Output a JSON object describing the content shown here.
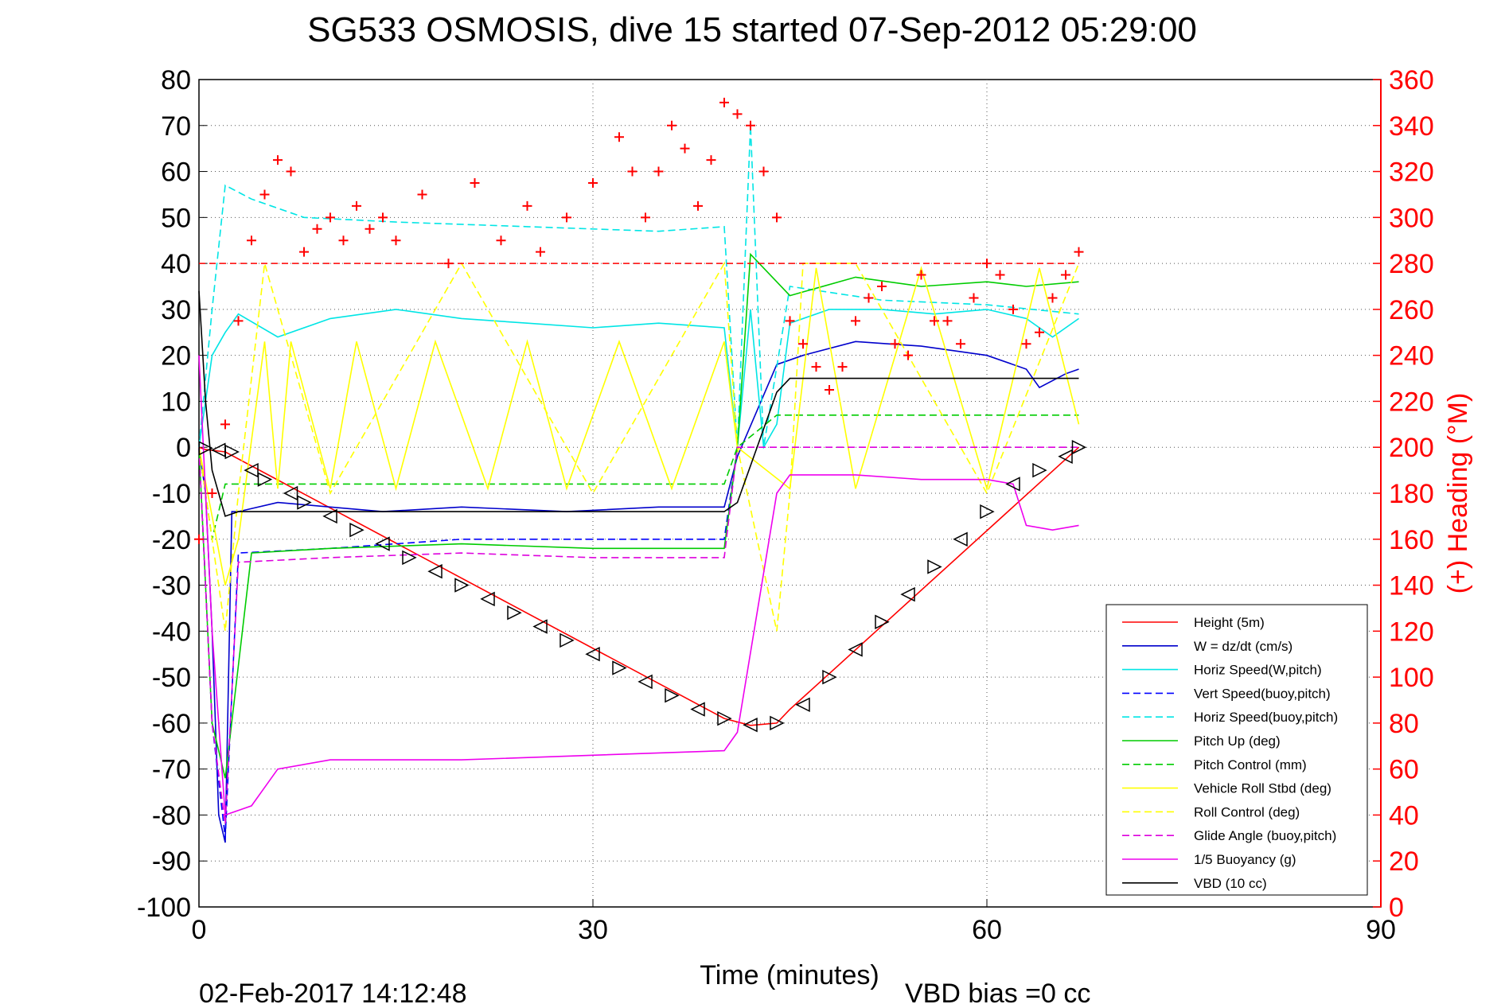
{
  "chart_data": {
    "type": "line",
    "title": "SG533 OSMOSIS, dive 15 started 07-Sep-2012 05:29:00",
    "xlabel": "Time (minutes)",
    "ylabel_right": "(+) Heading (°M)",
    "footer_date": "02-Feb-2017 14:12:48",
    "footer_vbd": "VBD bias =0 cc",
    "xlim": [
      0,
      90
    ],
    "ylim": [
      -100,
      80
    ],
    "y2lim": [
      0,
      360
    ],
    "x_ticks": [
      "0",
      "30",
      "60",
      "90"
    ],
    "y_ticks": [
      "80",
      "70",
      "60",
      "50",
      "40",
      "30",
      "20",
      "10",
      "0",
      "-10",
      "-20",
      "-30",
      "-40",
      "-50",
      "-60",
      "-70",
      "-80",
      "-90",
      "-100"
    ],
    "y2_ticks": [
      "360",
      "340",
      "320",
      "300",
      "280",
      "260",
      "240",
      "220",
      "200",
      "180",
      "160",
      "140",
      "120",
      "100",
      "80",
      "60",
      "40",
      "20",
      "0"
    ],
    "grid": true,
    "legend_position": "bottom-right",
    "colors": {
      "axis_right": "#ff0000",
      "height": "#ff0000",
      "w": "#0000cc",
      "horiz_w": "#00e5e5",
      "vert_buoy": "#0000ff",
      "horiz_buoy": "#00e5e5",
      "pitch": "#00cc00",
      "pitch_ctl": "#00cc00",
      "roll": "#ffff00",
      "roll_ctl": "#ffff00",
      "glide": "#dd00dd",
      "buoyancy": "#ee00ee",
      "vbd": "#000000",
      "heading": "#ff0000"
    },
    "legend": [
      {
        "label": "Height (5m)",
        "color": "#ff0000",
        "dash": false
      },
      {
        "label": "W = dz/dt (cm/s)",
        "color": "#0000cc",
        "dash": false
      },
      {
        "label": "Horiz Speed(W,pitch)",
        "color": "#00e5e5",
        "dash": false
      },
      {
        "label": "Vert Speed(buoy,pitch)",
        "color": "#0000ff",
        "dash": true
      },
      {
        "label": "Horiz Speed(buoy,pitch)",
        "color": "#00e5e5",
        "dash": true
      },
      {
        "label": "Pitch Up (deg)",
        "color": "#00cc00",
        "dash": false
      },
      {
        "label": "Pitch Control (mm)",
        "color": "#00cc00",
        "dash": true
      },
      {
        "label": "Vehicle Roll Stbd (deg)",
        "color": "#ffff00",
        "dash": false
      },
      {
        "label": "Roll Control (deg)",
        "color": "#ffff00",
        "dash": true
      },
      {
        "label": "Glide Angle (buoy,pitch)",
        "color": "#dd00dd",
        "dash": true
      },
      {
        "label": "1/5 Buoyancy (g)",
        "color": "#ee00ee",
        "dash": false
      },
      {
        "label": "VBD (10 cc)",
        "color": "#000000",
        "dash": false
      }
    ],
    "series": [
      {
        "name": "Height (5m)",
        "x": [
          0,
          0.5,
          2,
          40,
          42,
          44,
          45,
          67
        ],
        "y": [
          0,
          -0.5,
          -1,
          -59,
          -60.5,
          -60,
          -57,
          0
        ]
      },
      {
        "name": "W = dz/dt (cm/s)",
        "x": [
          0,
          0.5,
          1,
          1.5,
          2,
          2.5,
          3,
          6,
          10,
          14,
          20,
          28,
          35,
          40,
          41,
          44,
          46,
          50,
          55,
          60,
          63,
          64,
          66,
          67
        ],
        "y": [
          0,
          -10,
          -40,
          -80,
          -86,
          -14,
          -14,
          -12,
          -13,
          -14,
          -13,
          -14,
          -13,
          -13,
          -2,
          18,
          20,
          23,
          22,
          20,
          17,
          13,
          16,
          17
        ]
      },
      {
        "name": "Horiz Speed(W,pitch)",
        "x": [
          0,
          1,
          2,
          3,
          6,
          10,
          15,
          20,
          25,
          30,
          35,
          40,
          41,
          42,
          43,
          44,
          45,
          48,
          52,
          56,
          60,
          63,
          65,
          67
        ],
        "y": [
          0,
          20,
          25,
          29,
          24,
          28,
          30,
          28,
          27,
          26,
          27,
          26,
          0,
          30,
          0,
          5,
          27,
          30,
          30,
          29,
          30,
          28,
          24,
          28
        ]
      },
      {
        "name": "Vert Speed(buoy,pitch)",
        "x": [
          0,
          1,
          2,
          3,
          10,
          20,
          30,
          40,
          41
        ],
        "y": [
          0,
          -60,
          -85,
          -23,
          -22,
          -20,
          -20,
          -20,
          0
        ]
      },
      {
        "name": "Horiz Speed(buoy,pitch)",
        "x": [
          0,
          1,
          2,
          4,
          8,
          15,
          25,
          35,
          40,
          41,
          42,
          43,
          45,
          52,
          60,
          67
        ],
        "y": [
          0,
          30,
          57,
          54,
          50,
          49,
          48,
          47,
          48,
          0,
          70,
          0,
          35,
          32,
          31,
          29
        ]
      },
      {
        "name": "Pitch Up (deg)",
        "x": [
          0,
          1,
          2,
          4,
          10,
          20,
          30,
          40,
          41,
          42,
          45,
          50,
          55,
          60,
          63,
          67
        ],
        "y": [
          0,
          -60,
          -72,
          -23,
          -22,
          -21,
          -22,
          -22,
          0,
          42,
          33,
          37,
          35,
          36,
          35,
          36
        ]
      },
      {
        "name": "Pitch Control (mm)",
        "x": [
          0,
          1,
          2,
          3,
          10,
          20,
          30,
          40,
          41,
          44,
          50,
          60,
          67
        ],
        "y": [
          0,
          -20,
          -8,
          -8,
          -8,
          -8,
          -8,
          -8,
          0,
          7,
          7,
          7,
          7
        ]
      },
      {
        "name": "Vehicle Roll Stbd (deg)",
        "x": [
          0,
          2,
          3,
          5,
          6,
          7,
          10,
          12,
          15,
          18,
          22,
          25,
          28,
          32,
          36,
          40,
          41,
          45,
          47,
          50,
          55,
          60,
          64,
          67
        ],
        "y": [
          0,
          -30,
          -20,
          23,
          -9,
          23,
          -9,
          23,
          -9,
          23,
          -9,
          23,
          -9,
          23,
          -9,
          23,
          0,
          -9,
          39,
          -9,
          39,
          -9,
          39,
          5
        ]
      },
      {
        "name": "Roll Control (deg)",
        "x": [
          0,
          2,
          3,
          5,
          10,
          20,
          30,
          40,
          41,
          44,
          45,
          46,
          50,
          60,
          67
        ],
        "y": [
          0,
          -40,
          -10,
          40,
          -10,
          40,
          -10,
          40,
          0,
          -40,
          -10,
          40,
          40,
          -10,
          40
        ]
      },
      {
        "name": "Glide Angle (buoy,pitch)",
        "x": [
          0,
          1,
          2,
          3,
          10,
          20,
          30,
          40,
          41,
          50,
          60,
          67
        ],
        "y": [
          0,
          -60,
          -82,
          -25,
          -24,
          -23,
          -24,
          -24,
          0,
          0,
          0,
          0
        ]
      },
      {
        "name": "1/5 Buoyancy (g)",
        "x": [
          0,
          1,
          2,
          4,
          5,
          6,
          10,
          20,
          30,
          40,
          41,
          44,
          45,
          50,
          55,
          60,
          62,
          63,
          65,
          67
        ],
        "y": [
          20,
          -40,
          -80,
          -78,
          -74,
          -70,
          -68,
          -68,
          -67,
          -66,
          -62,
          -10,
          -6,
          -6,
          -7,
          -7,
          -8,
          -17,
          -18,
          -17
        ]
      },
      {
        "name": "VBD (10 cc)",
        "x": [
          0,
          0.5,
          1,
          2,
          3,
          10,
          20,
          30,
          40,
          41,
          44,
          45,
          50,
          60,
          67
        ],
        "y": [
          34,
          10,
          -5,
          -15,
          -14,
          -14,
          -14,
          -14,
          -14,
          -12,
          12,
          15,
          15,
          15,
          15
        ]
      }
    ],
    "heading": {
      "name": "(+) Heading",
      "axis": "right",
      "reference": 280,
      "x": [
        0,
        1,
        2,
        3,
        4,
        5,
        6,
        7,
        8,
        9,
        10,
        11,
        12,
        13,
        14,
        15,
        17,
        19,
        21,
        23,
        25,
        26,
        28,
        30,
        32,
        33,
        34,
        35,
        36,
        37,
        38,
        39,
        40,
        41,
        42,
        43,
        44,
        45,
        46,
        47,
        48,
        49,
        50,
        51,
        52,
        53,
        54,
        55,
        56,
        57,
        58,
        59,
        60,
        61,
        62,
        63,
        64,
        65,
        66,
        67
      ],
      "y": [
        160,
        180,
        210,
        255,
        290,
        310,
        325,
        320,
        285,
        295,
        300,
        290,
        305,
        295,
        300,
        290,
        310,
        280,
        315,
        290,
        305,
        285,
        300,
        315,
        335,
        320,
        300,
        320,
        340,
        330,
        305,
        325,
        350,
        345,
        340,
        320,
        300,
        255,
        245,
        235,
        225,
        235,
        255,
        265,
        270,
        245,
        240,
        275,
        255,
        255,
        245,
        265,
        280,
        275,
        260,
        245,
        250,
        265,
        275,
        285
      ]
    },
    "triangles": {
      "name": "Height markers",
      "x": [
        0.5,
        1.5,
        2.5,
        4,
        5,
        7,
        8,
        10,
        12,
        14,
        16,
        18,
        20,
        22,
        24,
        26,
        28,
        30,
        32,
        34,
        36,
        38,
        40,
        42,
        44,
        46,
        48,
        50,
        52,
        54,
        56,
        58,
        60,
        62,
        64,
        66,
        67
      ],
      "y": [
        -0.2,
        -0.6,
        -1,
        -5,
        -7,
        -10,
        -12,
        -15,
        -18,
        -21,
        -24,
        -27,
        -30,
        -33,
        -36,
        -39,
        -42,
        -45,
        -48,
        -51,
        -54,
        -57,
        -59,
        -60.4,
        -60,
        -56,
        -50,
        -44,
        -38,
        -32,
        -26,
        -20,
        -14,
        -8,
        -5,
        -2,
        0
      ]
    }
  }
}
